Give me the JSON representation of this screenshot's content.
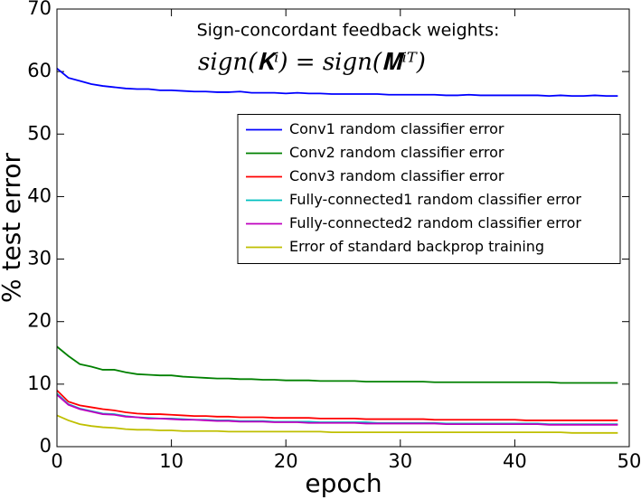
{
  "chart_data": {
    "type": "line",
    "title": "Sign-concordant feedback weights:",
    "subtitle": "sign(𝐊ⁱ) = sign(𝐌ⁱᵀ)",
    "x_label": "epoch",
    "y_label": "% test error",
    "x": [
      0,
      1,
      2,
      3,
      4,
      5,
      6,
      7,
      8,
      9,
      10,
      11,
      12,
      13,
      14,
      15,
      16,
      17,
      18,
      19,
      20,
      21,
      22,
      23,
      24,
      25,
      26,
      27,
      28,
      29,
      30,
      31,
      32,
      33,
      34,
      35,
      36,
      37,
      38,
      39,
      40,
      41,
      42,
      43,
      44,
      45,
      46,
      47,
      48,
      49
    ],
    "xlim": [
      0,
      50
    ],
    "xticks": [
      0,
      10,
      20,
      30,
      40,
      50
    ],
    "ylim": [
      0,
      70
    ],
    "yticks": [
      0,
      10,
      20,
      30,
      40,
      50,
      60,
      70
    ],
    "legend": "center right",
    "series": [
      {
        "name": "Conv1 random classifier error",
        "color": "#0000ff",
        "values": [
          60.5,
          59,
          58.5,
          58,
          57.7,
          57.5,
          57.3,
          57.2,
          57.2,
          57,
          57,
          56.9,
          56.8,
          56.8,
          56.7,
          56.7,
          56.8,
          56.6,
          56.6,
          56.6,
          56.5,
          56.6,
          56.5,
          56.5,
          56.4,
          56.4,
          56.4,
          56.4,
          56.4,
          56.3,
          56.3,
          56.3,
          56.3,
          56.3,
          56.2,
          56.2,
          56.3,
          56.2,
          56.2,
          56.2,
          56.2,
          56.2,
          56.2,
          56.1,
          56.2,
          56.1,
          56.1,
          56.2,
          56.1,
          56.1
        ]
      },
      {
        "name": "Conv2 random classifier error",
        "color": "#008000",
        "values": [
          16,
          14.5,
          13.2,
          12.8,
          12.3,
          12.3,
          11.9,
          11.6,
          11.5,
          11.4,
          11.4,
          11.2,
          11.1,
          11,
          10.9,
          10.9,
          10.8,
          10.8,
          10.7,
          10.7,
          10.6,
          10.6,
          10.6,
          10.5,
          10.5,
          10.5,
          10.5,
          10.4,
          10.4,
          10.4,
          10.4,
          10.4,
          10.4,
          10.3,
          10.3,
          10.3,
          10.3,
          10.3,
          10.3,
          10.3,
          10.3,
          10.3,
          10.3,
          10.3,
          10.2,
          10.2,
          10.2,
          10.2,
          10.2,
          10.2
        ]
      },
      {
        "name": "Conv3 random classifier error",
        "color": "#ff0000",
        "values": [
          9,
          7.2,
          6.6,
          6.3,
          6,
          5.8,
          5.5,
          5.3,
          5.2,
          5.2,
          5.1,
          5,
          4.9,
          4.9,
          4.8,
          4.8,
          4.7,
          4.7,
          4.7,
          4.6,
          4.6,
          4.6,
          4.6,
          4.5,
          4.5,
          4.5,
          4.5,
          4.4,
          4.4,
          4.4,
          4.4,
          4.4,
          4.4,
          4.3,
          4.3,
          4.3,
          4.3,
          4.3,
          4.3,
          4.3,
          4.3,
          4.2,
          4.2,
          4.2,
          4.2,
          4.2,
          4.2,
          4.2,
          4.2,
          4.2
        ]
      },
      {
        "name": "Fully-connected1 random classifier error",
        "color": "#00bfbf",
        "values": [
          8.5,
          6.8,
          6.1,
          5.7,
          5.3,
          5.2,
          4.9,
          4.7,
          4.6,
          4.5,
          4.5,
          4.4,
          4.3,
          4.3,
          4.2,
          4.2,
          4.1,
          4.1,
          4.1,
          4,
          4,
          4,
          4,
          3.9,
          3.9,
          3.9,
          3.9,
          3.9,
          3.8,
          3.8,
          3.8,
          3.8,
          3.8,
          3.8,
          3.7,
          3.7,
          3.7,
          3.7,
          3.7,
          3.7,
          3.7,
          3.7,
          3.7,
          3.6,
          3.6,
          3.6,
          3.6,
          3.6,
          3.6,
          3.6
        ]
      },
      {
        "name": "Fully-connected2 random classifier error",
        "color": "#bf00bf",
        "values": [
          8.3,
          6.7,
          6,
          5.6,
          5.2,
          5.1,
          4.8,
          4.7,
          4.5,
          4.5,
          4.4,
          4.3,
          4.3,
          4.2,
          4.1,
          4.1,
          4,
          4,
          4,
          3.9,
          3.9,
          3.9,
          3.8,
          3.8,
          3.8,
          3.8,
          3.8,
          3.7,
          3.7,
          3.7,
          3.7,
          3.7,
          3.7,
          3.7,
          3.6,
          3.6,
          3.6,
          3.6,
          3.6,
          3.6,
          3.6,
          3.6,
          3.6,
          3.5,
          3.5,
          3.5,
          3.5,
          3.5,
          3.5,
          3.5
        ]
      },
      {
        "name": "Error of standard backprop training",
        "color": "#bfbf00",
        "values": [
          5,
          4.2,
          3.6,
          3.3,
          3.1,
          3,
          2.8,
          2.7,
          2.7,
          2.6,
          2.6,
          2.5,
          2.5,
          2.5,
          2.5,
          2.4,
          2.4,
          2.4,
          2.4,
          2.4,
          2.4,
          2.4,
          2.4,
          2.4,
          2.3,
          2.3,
          2.3,
          2.3,
          2.3,
          2.3,
          2.3,
          2.3,
          2.3,
          2.3,
          2.3,
          2.3,
          2.3,
          2.3,
          2.3,
          2.3,
          2.3,
          2.3,
          2.3,
          2.3,
          2.3,
          2.2,
          2.2,
          2.2,
          2.2,
          2.2
        ]
      }
    ]
  }
}
